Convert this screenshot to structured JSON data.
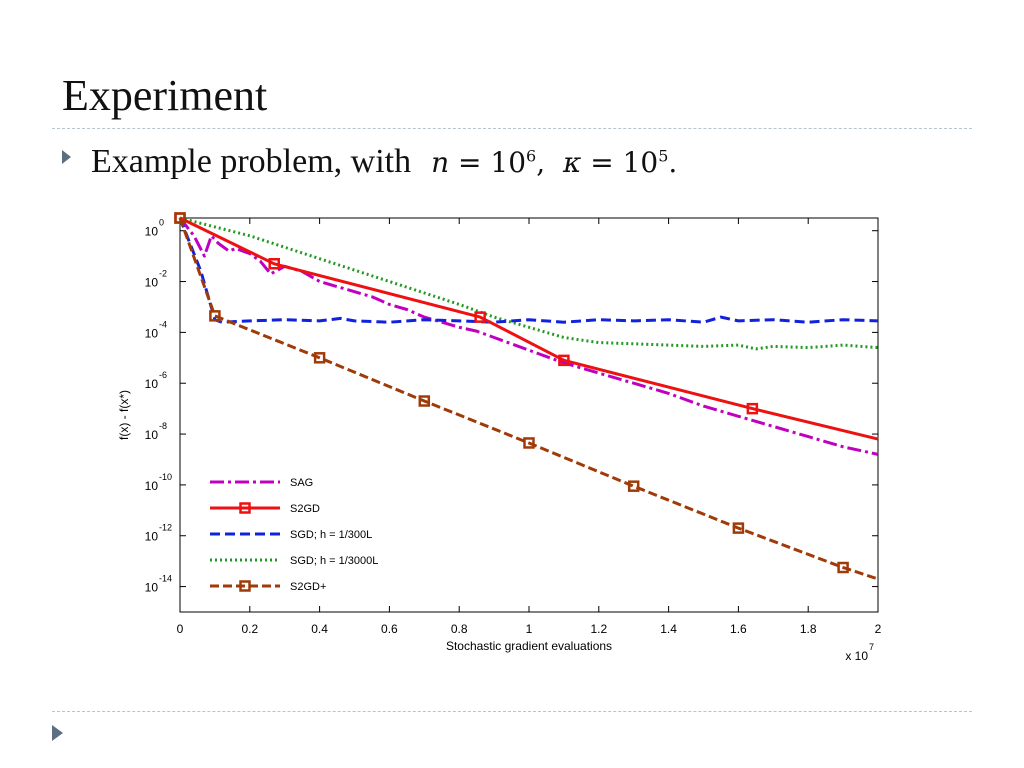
{
  "slide": {
    "title": "Experiment",
    "bullet_text": "Example problem, with",
    "math_n": "n",
    "math_n_exp": "6",
    "math_kappa": "κ",
    "math_kappa_exp": "5",
    "math_eq": " = 10"
  },
  "chart_data": {
    "type": "line",
    "xlabel": "Stochastic gradient evaluations",
    "ylabel": "f(x) - f(x*)",
    "x_multiplier": "x 10",
    "x_multiplier_exp": "7",
    "xlim": [
      0,
      2
    ],
    "ylim_log10": [
      -15,
      0.5
    ],
    "yscale": "log",
    "x_ticks": [
      "0",
      "0.2",
      "0.4",
      "0.6",
      "0.8",
      "1",
      "1.2",
      "1.4",
      "1.6",
      "1.8",
      "2"
    ],
    "x_tick_values": [
      0,
      0.2,
      0.4,
      0.6,
      0.8,
      1.0,
      1.2,
      1.4,
      1.6,
      1.8,
      2.0
    ],
    "y_tick_exponents": [
      "0",
      "-2",
      "-4",
      "-6",
      "-8",
      "-10",
      "-12",
      "-14"
    ],
    "y_tick_values_log10": [
      0,
      -2,
      -4,
      -6,
      -8,
      -10,
      -12,
      -14
    ],
    "y_tick_base": "10",
    "legend_position": "bottom-left",
    "series": [
      {
        "name": "SAG",
        "color": "#c000c0",
        "dash": "14,4,3,4",
        "width": 3,
        "marker": "none",
        "points": [
          [
            0,
            0.5
          ],
          [
            0.04,
            -0.2
          ],
          [
            0.07,
            -1.0
          ],
          [
            0.09,
            -0.2
          ],
          [
            0.11,
            -0.5
          ],
          [
            0.14,
            -0.8
          ],
          [
            0.16,
            -0.7
          ],
          [
            0.2,
            -0.9
          ],
          [
            0.23,
            -1.2
          ],
          [
            0.26,
            -1.7
          ],
          [
            0.3,
            -1.4
          ],
          [
            0.35,
            -1.6
          ],
          [
            0.4,
            -2.0
          ],
          [
            0.45,
            -2.2
          ],
          [
            0.5,
            -2.4
          ],
          [
            0.55,
            -2.6
          ],
          [
            0.6,
            -2.9
          ],
          [
            0.65,
            -3.1
          ],
          [
            0.7,
            -3.4
          ],
          [
            0.75,
            -3.6
          ],
          [
            0.8,
            -3.8
          ],
          [
            0.85,
            -3.95
          ],
          [
            0.9,
            -4.2
          ],
          [
            1.0,
            -4.7
          ],
          [
            1.1,
            -5.2
          ],
          [
            1.2,
            -5.6
          ],
          [
            1.3,
            -6.0
          ],
          [
            1.4,
            -6.4
          ],
          [
            1.5,
            -6.9
          ],
          [
            1.6,
            -7.3
          ],
          [
            1.7,
            -7.7
          ],
          [
            1.8,
            -8.1
          ],
          [
            1.9,
            -8.5
          ],
          [
            2.0,
            -8.8
          ]
        ]
      },
      {
        "name": "S2GD",
        "color": "#ee1111",
        "dash": "",
        "width": 3,
        "marker": "square",
        "points": [
          [
            0,
            0.5
          ],
          [
            0.27,
            -1.3
          ],
          [
            0.86,
            -3.4
          ],
          [
            1.1,
            -5.1
          ],
          [
            1.64,
            -7.0
          ],
          [
            2.0,
            -8.2
          ]
        ],
        "marker_points": [
          [
            0,
            0.5
          ],
          [
            0.27,
            -1.3
          ],
          [
            0.86,
            -3.4
          ],
          [
            1.1,
            -5.1
          ],
          [
            1.64,
            -7.0
          ]
        ]
      },
      {
        "name": "SGD; h = 1/300L",
        "color": "#1122dd",
        "dash": "10,5",
        "width": 3,
        "marker": "none",
        "points": [
          [
            0,
            0.5
          ],
          [
            0.06,
            -1.6
          ],
          [
            0.1,
            -3.5
          ],
          [
            0.12,
            -3.6
          ],
          [
            0.2,
            -3.55
          ],
          [
            0.3,
            -3.5
          ],
          [
            0.4,
            -3.55
          ],
          [
            0.46,
            -3.45
          ],
          [
            0.5,
            -3.55
          ],
          [
            0.6,
            -3.6
          ],
          [
            0.7,
            -3.5
          ],
          [
            0.8,
            -3.55
          ],
          [
            0.9,
            -3.6
          ],
          [
            1.0,
            -3.5
          ],
          [
            1.1,
            -3.6
          ],
          [
            1.2,
            -3.5
          ],
          [
            1.3,
            -3.55
          ],
          [
            1.4,
            -3.5
          ],
          [
            1.5,
            -3.6
          ],
          [
            1.55,
            -3.4
          ],
          [
            1.6,
            -3.55
          ],
          [
            1.7,
            -3.5
          ],
          [
            1.8,
            -3.6
          ],
          [
            1.9,
            -3.5
          ],
          [
            2.0,
            -3.55
          ]
        ]
      },
      {
        "name": "SGD; h = 1/3000L",
        "color": "#229922",
        "dash": "2,3",
        "width": 3,
        "marker": "none",
        "points": [
          [
            0,
            0.5
          ],
          [
            0.2,
            -0.2
          ],
          [
            0.4,
            -1.1
          ],
          [
            0.6,
            -2.0
          ],
          [
            0.8,
            -2.9
          ],
          [
            0.9,
            -3.4
          ],
          [
            1.0,
            -3.8
          ],
          [
            1.1,
            -4.2
          ],
          [
            1.2,
            -4.4
          ],
          [
            1.3,
            -4.45
          ],
          [
            1.4,
            -4.5
          ],
          [
            1.5,
            -4.55
          ],
          [
            1.6,
            -4.5
          ],
          [
            1.65,
            -4.65
          ],
          [
            1.7,
            -4.55
          ],
          [
            1.8,
            -4.6
          ],
          [
            1.9,
            -4.5
          ],
          [
            2.0,
            -4.6
          ]
        ]
      },
      {
        "name": "S2GD+",
        "color": "#a03a08",
        "dash": "9,4",
        "width": 3,
        "marker": "square",
        "points": [
          [
            0,
            0.5
          ],
          [
            0.1,
            -3.35
          ],
          [
            0.4,
            -5.0
          ],
          [
            0.7,
            -6.7
          ],
          [
            1.0,
            -8.35
          ],
          [
            1.3,
            -10.05
          ],
          [
            1.6,
            -11.7
          ],
          [
            1.9,
            -13.25
          ],
          [
            2.0,
            -13.7
          ]
        ],
        "marker_points": [
          [
            0,
            0.5
          ],
          [
            0.1,
            -3.35
          ],
          [
            0.4,
            -5.0
          ],
          [
            0.7,
            -6.7
          ],
          [
            1.0,
            -8.35
          ],
          [
            1.3,
            -10.05
          ],
          [
            1.6,
            -11.7
          ],
          [
            1.9,
            -13.25
          ]
        ]
      }
    ]
  }
}
